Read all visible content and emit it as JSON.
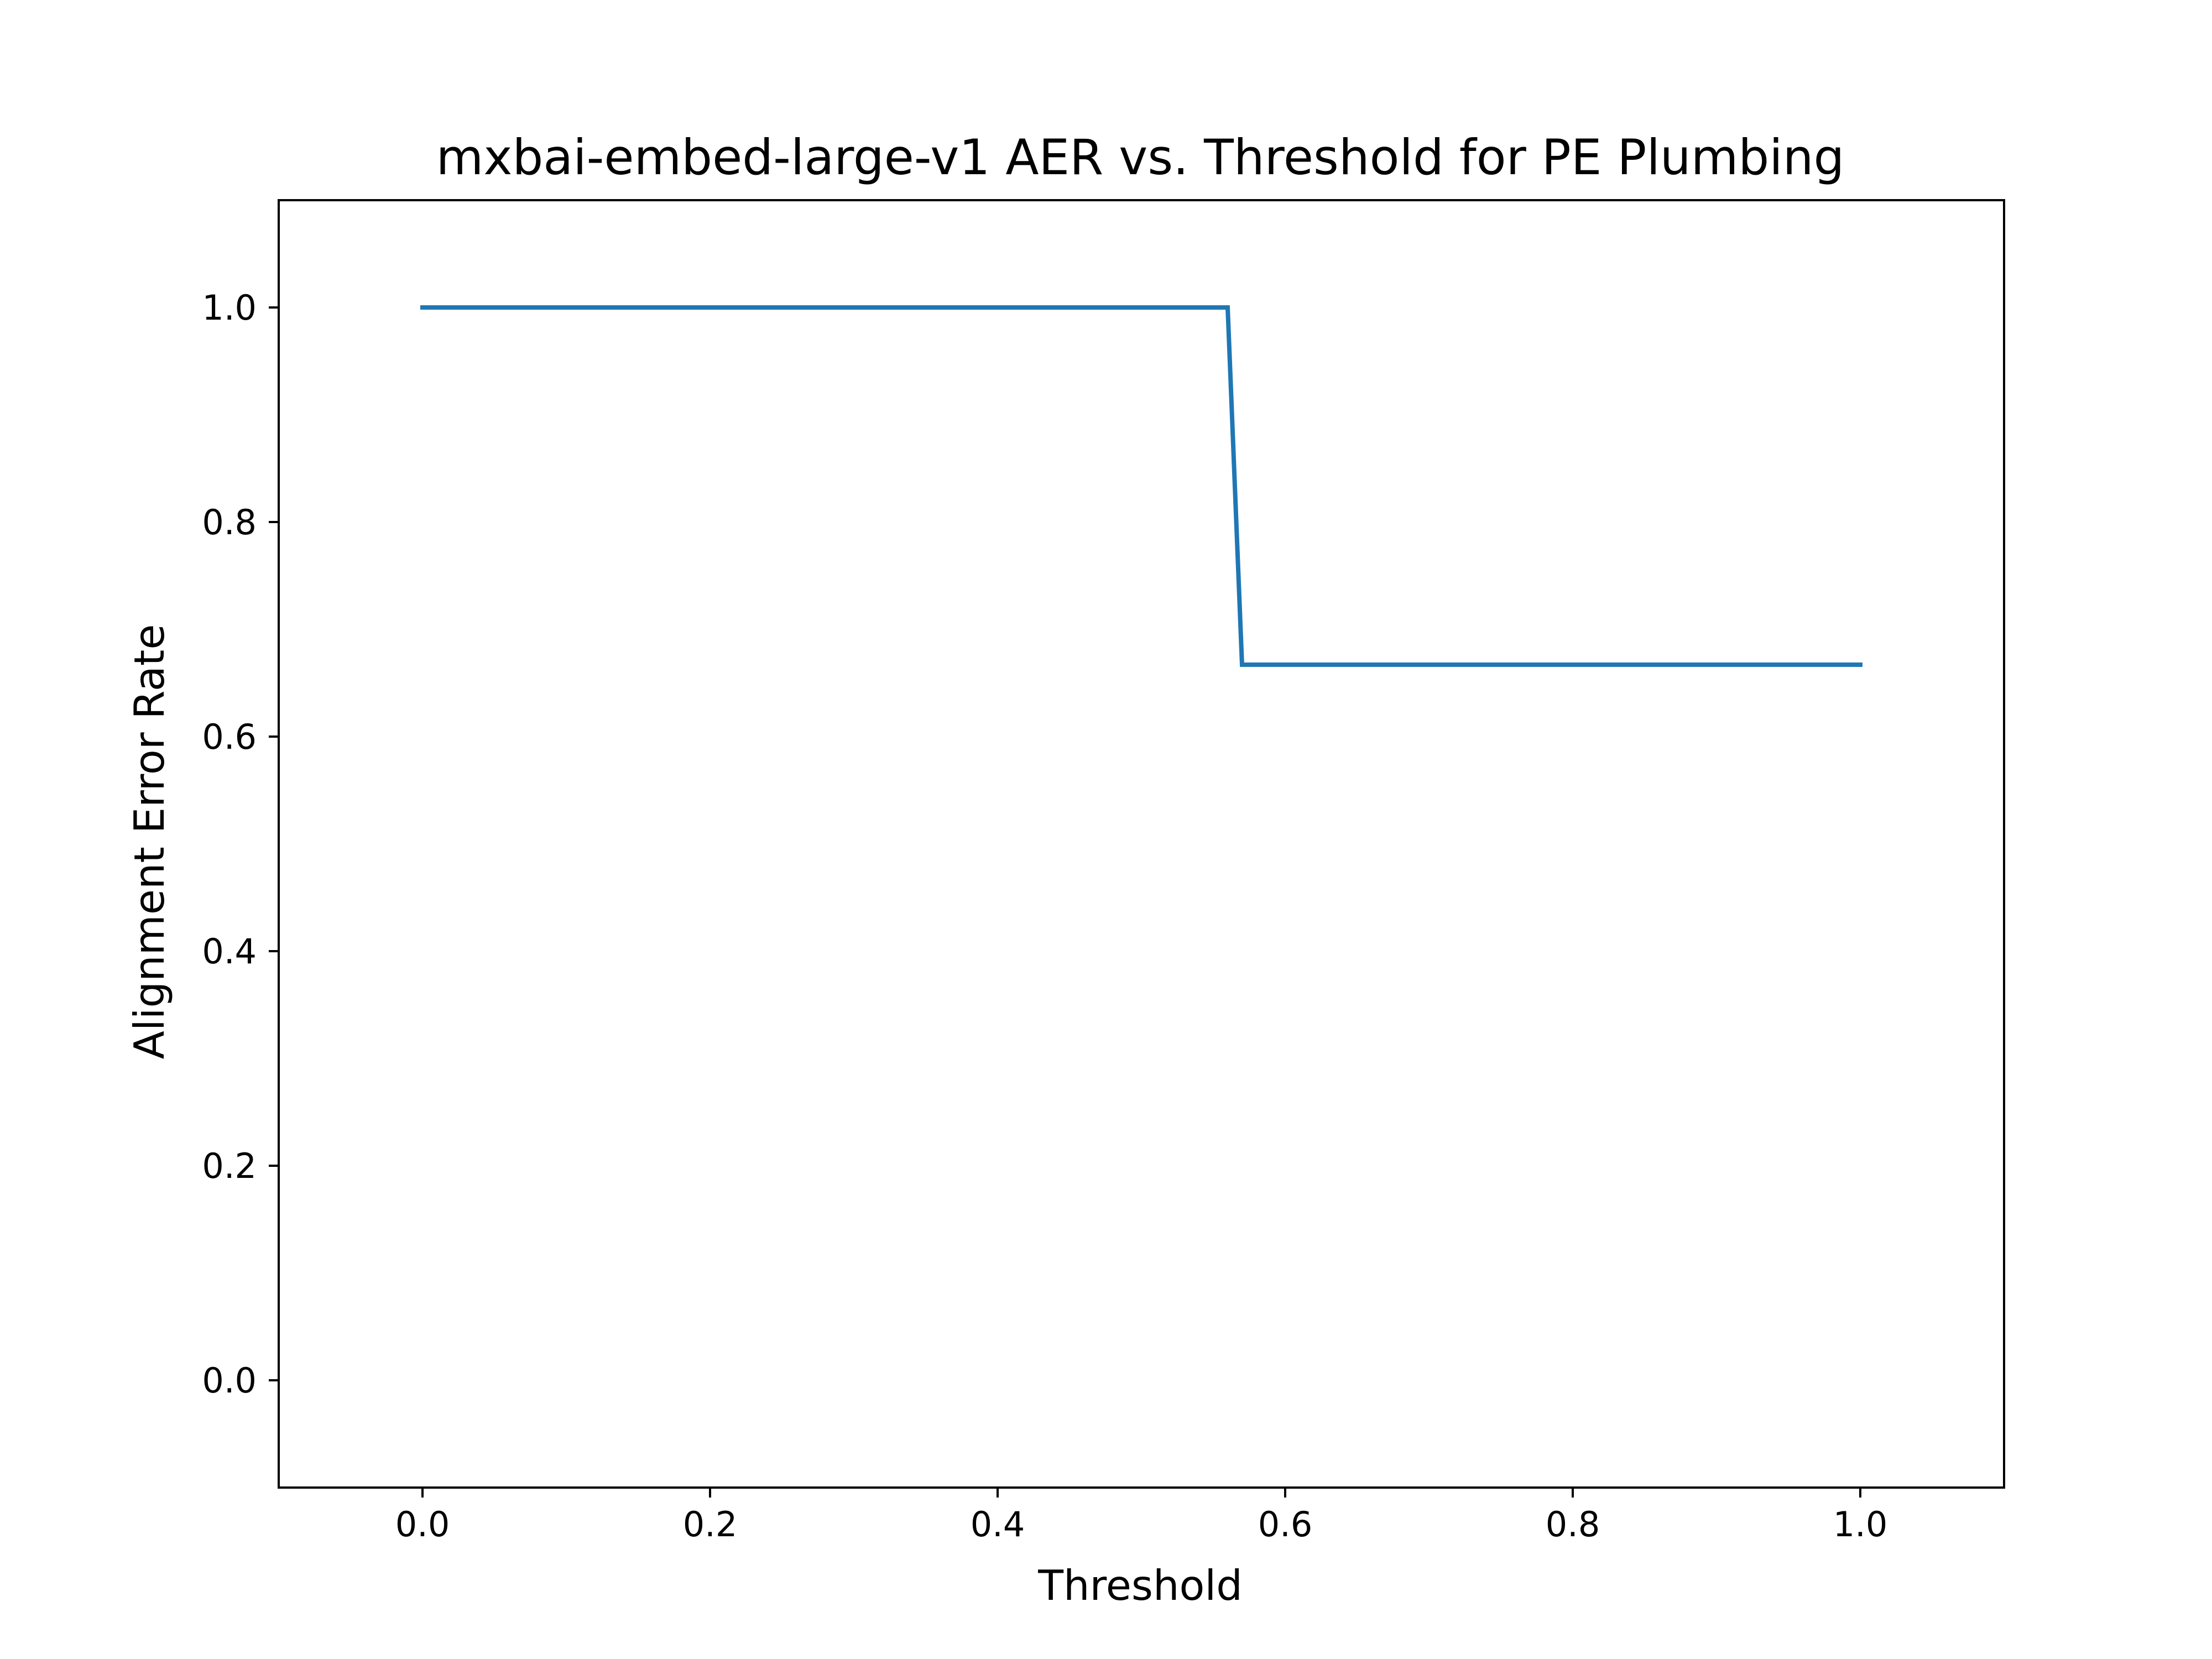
{
  "chart_data": {
    "type": "line",
    "title": "mxbai-embed-large-v1 AER vs. Threshold for PE Plumbing",
    "xlabel": "Threshold",
    "ylabel": "Alignment Error Rate",
    "xlim": [
      -0.1,
      1.1
    ],
    "ylim": [
      -0.1,
      1.1
    ],
    "xticks": [
      0.0,
      0.2,
      0.4,
      0.6,
      0.8,
      1.0
    ],
    "yticks": [
      0.0,
      0.2,
      0.4,
      0.6,
      0.8,
      1.0
    ],
    "xtick_labels": [
      "0.0",
      "0.2",
      "0.4",
      "0.6",
      "0.8",
      "1.0"
    ],
    "ytick_labels": [
      "0.0",
      "0.2",
      "0.4",
      "0.6",
      "0.8",
      "1.0"
    ],
    "grid": false,
    "legend": "none",
    "series": [
      {
        "color": "#1f77b4",
        "x": [
          0.0,
          0.56,
          0.57,
          1.0
        ],
        "y": [
          1.0,
          1.0,
          0.667,
          0.667
        ]
      }
    ]
  }
}
